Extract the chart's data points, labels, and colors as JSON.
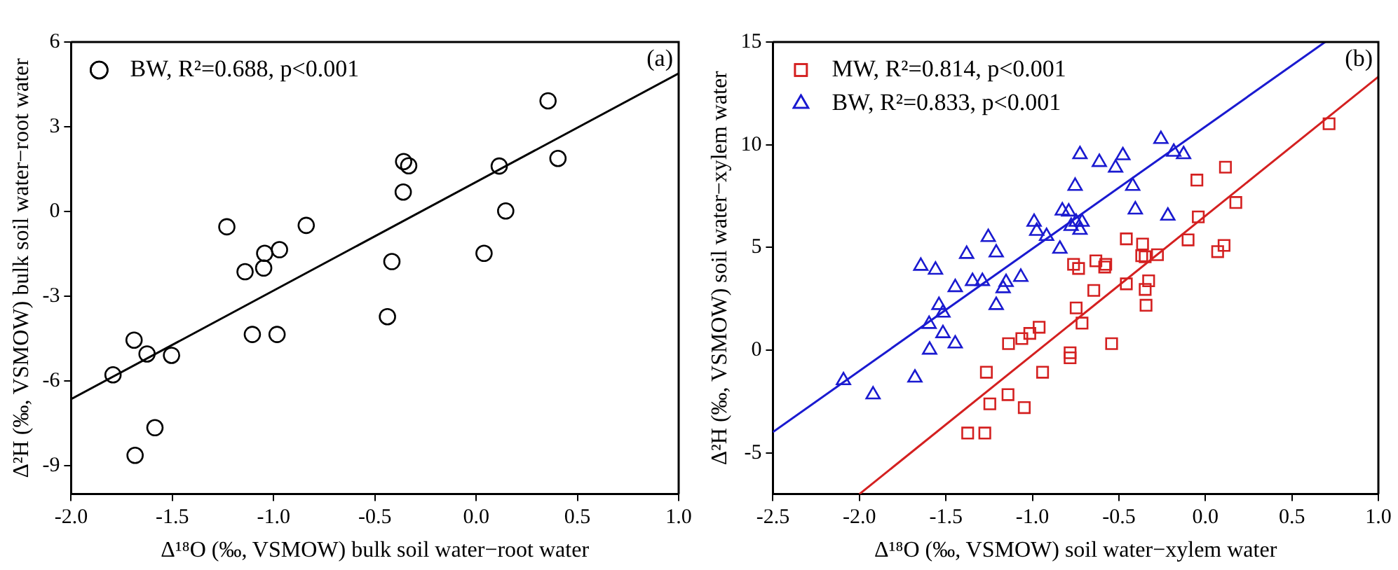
{
  "chart_data": [
    {
      "type": "scatter",
      "xlabel": "Δ¹⁸O (‰, VSMOW) bulk soil water−root water",
      "ylabel": "Δ²H (‰, VSMOW) bulk soil water−root water",
      "xlim": [
        -2,
        1
      ],
      "ylim": [
        -10,
        6
      ],
      "xticks": [
        {
          "value": -2,
          "label": "-2.0"
        },
        {
          "value": -1.5,
          "label": "-1.5"
        },
        {
          "value": -1,
          "label": "-1.0"
        },
        {
          "value": -0.5,
          "label": "-0.5"
        },
        {
          "value": 0,
          "label": "0.0"
        },
        {
          "value": 0.5,
          "label": "0.5"
        },
        {
          "value": 1,
          "label": "1.0"
        }
      ],
      "yticks": [
        -9,
        -6,
        -3,
        0,
        3,
        6
      ],
      "grid": false,
      "legend": "top left",
      "annotations": [
        "(a)"
      ],
      "series": [
        {
          "name": "BW, R²=0.688, p<0.001",
          "color": "#000000",
          "marker": "circle",
          "x": [
            0.355,
            0.404,
            0.114,
            0.146,
            0.039,
            -0.358,
            -0.333,
            -0.36,
            -0.416,
            -0.438,
            -0.839,
            -1.231,
            -0.971,
            -1.044,
            -1.049,
            -1.141,
            -1.105,
            -0.983,
            -1.689,
            -1.625,
            -1.504,
            -1.793,
            -1.586,
            -1.684
          ],
          "values": [
            3.92,
            1.88,
            1.61,
            0.02,
            -1.48,
            1.77,
            1.62,
            0.69,
            -1.77,
            -3.72,
            -0.49,
            -0.54,
            -1.35,
            -1.48,
            -2.0,
            -2.13,
            -4.35,
            -4.35,
            -4.55,
            -5.04,
            -5.09,
            -5.78,
            -7.65,
            -8.63
          ]
        },
        {
          "type": "line",
          "color": "#000000",
          "marker": "none",
          "x": [
            -2,
            1
          ],
          "values": [
            -6.64,
            4.89
          ]
        }
      ]
    },
    {
      "type": "scatter",
      "xlabel": "Δ¹⁸O (‰, VSMOW) soil water−xylem water",
      "ylabel": "Δ²H (‰, VSMOW) soil water−xylem water",
      "xlim": [
        -2.5,
        1
      ],
      "ylim": [
        -7,
        15
      ],
      "xticks": [
        {
          "value": -2.5,
          "label": "-2.5"
        },
        {
          "value": -2,
          "label": "-2.0"
        },
        {
          "value": -1.5,
          "label": "-1.5"
        },
        {
          "value": -1,
          "label": "-1.0"
        },
        {
          "value": -0.5,
          "label": "-0.5"
        },
        {
          "value": 0,
          "label": "0.0"
        },
        {
          "value": 0.5,
          "label": "0.5"
        },
        {
          "value": 1,
          "label": "1.0"
        }
      ],
      "yticks": [
        -5,
        0,
        5,
        10,
        15
      ],
      "grid": false,
      "legend": "top left",
      "annotations": [
        "(b)"
      ],
      "series": [
        {
          "name": "MW, R²=0.814, p<0.001",
          "color": "#d42020",
          "marker": "square",
          "x": [
            -1.374,
            -1.275,
            -1.246,
            -1.141,
            -1.047,
            -1.266,
            -0.941,
            -1.138,
            -1.061,
            -1.015,
            -0.961,
            -0.782,
            -0.782,
            -0.713,
            -0.747,
            -0.645,
            -0.542,
            -0.457,
            -0.348,
            -0.328,
            -0.343,
            -0.762,
            -0.733,
            -0.633,
            -0.576,
            -0.582,
            -0.457,
            -0.363,
            -0.368,
            -0.348,
            -0.277,
            -0.1,
            -0.041,
            -0.049,
            0.116,
            0.176,
            0.071,
            0.108,
            0.715
          ],
          "values": [
            -4.03,
            -4.03,
            -2.61,
            -2.16,
            -2.79,
            -1.07,
            -1.07,
            0.32,
            0.57,
            0.82,
            1.12,
            -0.12,
            -0.37,
            1.32,
            2.06,
            2.91,
            0.32,
            3.23,
            2.96,
            3.38,
            2.19,
            4.18,
            3.98,
            4.35,
            4.18,
            4.05,
            5.42,
            5.17,
            4.6,
            4.55,
            4.65,
            5.37,
            6.49,
            8.28,
            8.91,
            7.19,
            4.8,
            5.1,
            11.02
          ]
        },
        {
          "name": "BW, R²=0.833, p<0.001",
          "color": "#1a1ad0",
          "marker": "triangle",
          "x": [
            -2.092,
            -1.921,
            -1.679,
            -1.594,
            -1.446,
            -1.517,
            -1.597,
            -1.54,
            -1.517,
            -1.446,
            -1.645,
            -1.56,
            -1.38,
            -1.346,
            -1.289,
            -1.255,
            -1.209,
            -1.209,
            -1.169,
            -1.152,
            -1.067,
            -0.99,
            -0.975,
            -0.918,
            -0.841,
            -0.827,
            -0.79,
            -0.776,
            -0.747,
            -0.713,
            -0.725,
            -0.753,
            -0.725,
            -0.613,
            -0.519,
            -0.477,
            -0.42,
            -0.405,
            -0.257,
            -0.183,
            -0.126,
            -0.217
          ],
          "values": [
            -1.47,
            -2.16,
            -1.34,
            0.02,
            0.32,
            0.82,
            1.27,
            2.19,
            1.82,
            3.06,
            4.1,
            3.91,
            4.68,
            3.36,
            3.36,
            5.5,
            4.75,
            2.19,
            3.01,
            3.31,
            3.56,
            6.24,
            5.8,
            5.55,
            4.93,
            6.79,
            6.74,
            6.04,
            6.24,
            6.24,
            5.85,
            7.99,
            9.53,
            9.15,
            8.88,
            9.48,
            7.99,
            6.84,
            10.27,
            9.65,
            9.53,
            6.54
          ]
        },
        {
          "type": "line",
          "color": "#d42020",
          "marker": "none",
          "x": [
            -2,
            1
          ],
          "values": [
            -7,
            13.31
          ]
        },
        {
          "type": "line",
          "color": "#1a1ad0",
          "marker": "none",
          "x": [
            -2.5,
            0.692
          ],
          "values": [
            -3.98,
            15
          ]
        }
      ]
    }
  ]
}
